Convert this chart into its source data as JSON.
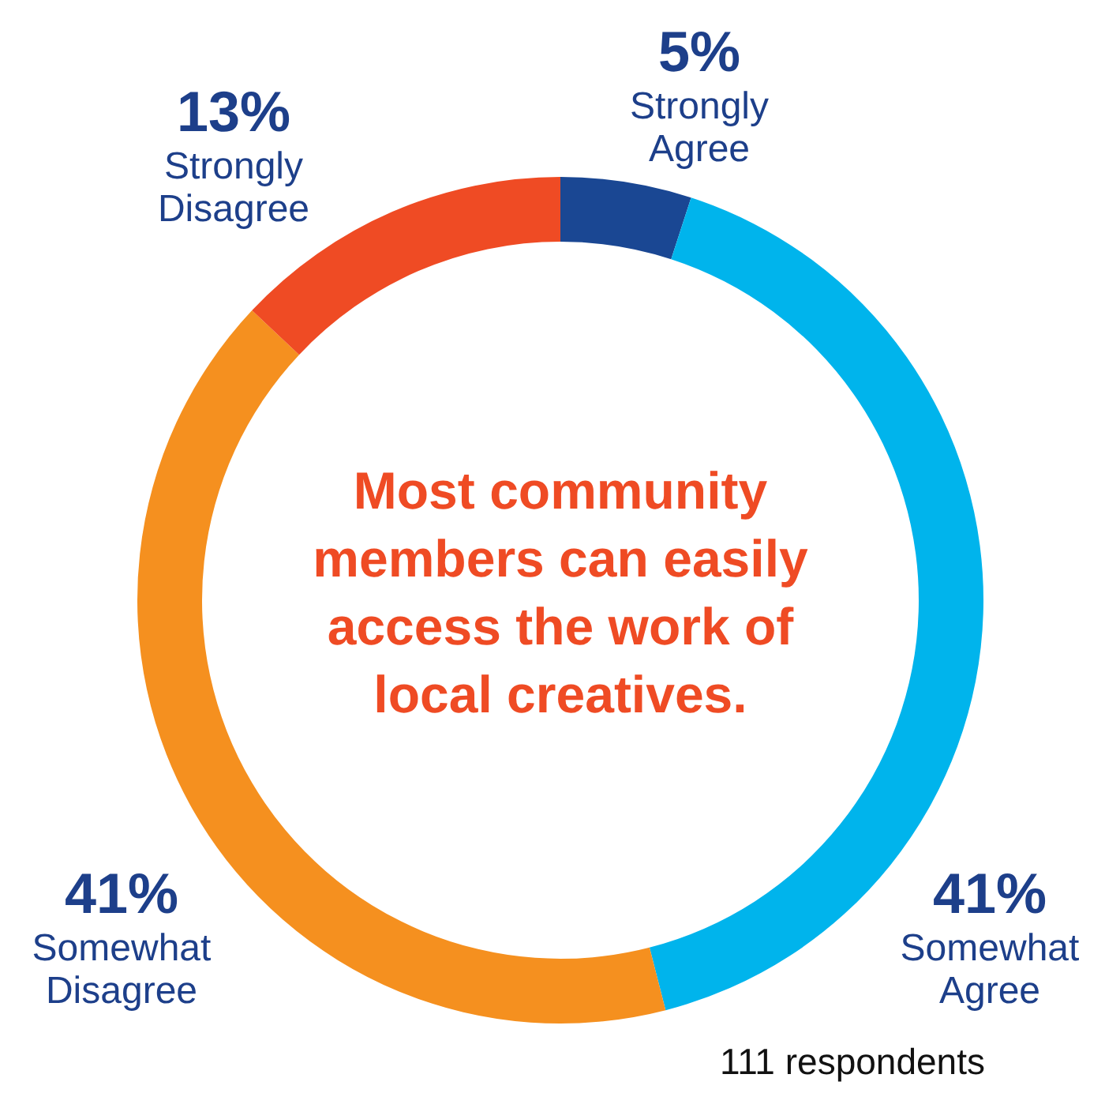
{
  "chart_data": {
    "type": "donut",
    "title": "Most community members can easily access the work of local creatives.",
    "categories": [
      "Strongly Agree",
      "Somewhat Agree",
      "Somewhat Disagree",
      "Strongly Disagree"
    ],
    "values": [
      5,
      41,
      41,
      13
    ],
    "colors": [
      "#1a4793",
      "#00b4ec",
      "#f5901f",
      "#ef4b24"
    ],
    "value_labels": [
      "5%",
      "41%",
      "41%",
      "13%"
    ],
    "annotations": [
      "111 respondents"
    ],
    "legend": false
  }
}
